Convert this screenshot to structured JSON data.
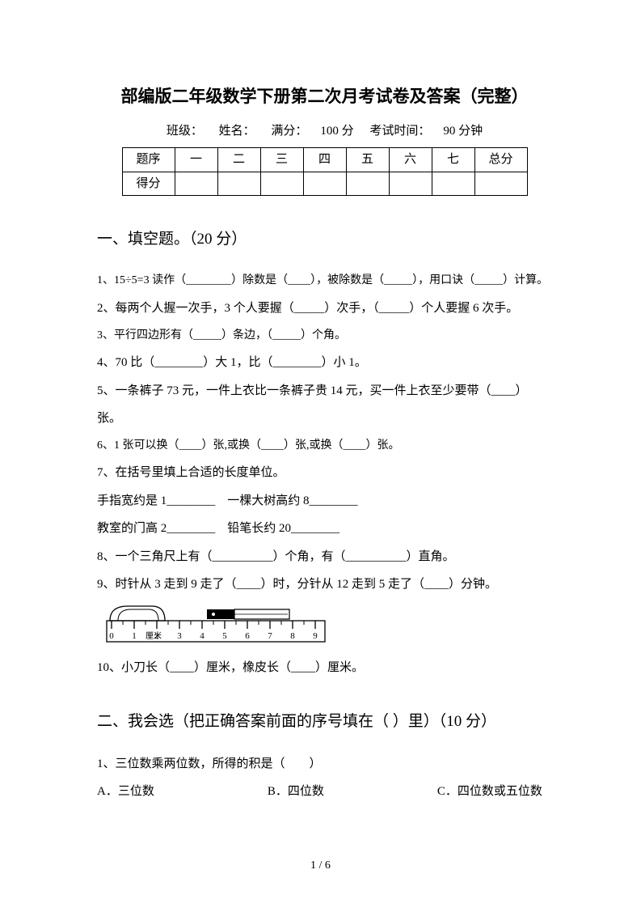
{
  "title": "部编版二年级数学下册第二次月考试卷及答案（完整）",
  "meta": {
    "class_label": "班级：",
    "name_label": "姓名：",
    "full_label": "满分：",
    "full_value": "100 分",
    "time_label": "考试时间：",
    "time_value": "90 分钟"
  },
  "score_table": {
    "row1": [
      "题序",
      "一",
      "二",
      "三",
      "四",
      "五",
      "六",
      "七",
      "总分"
    ],
    "row2_label": "得分"
  },
  "section1": {
    "heading": "一、填空题。（20 分）",
    "q1": "1、15÷5=3 读作（________）除数是（____），被除数是（_____），用口诀（_____）计算。",
    "q2": "2、每两个人握一次手，3 个人要握（_____）次手，（_____）个人要握 6 次手。",
    "q3": "3、平行四边形有（_____）条边，（_____）个角。",
    "q4": "4、70 比（________）大 1，比（________）小 1。",
    "q5a": "5、一条裤子 73 元，一件上衣比一条裤子贵 14 元，买一件上衣至少要带（____）",
    "q5b": "张。",
    "q6": "6、1 张可以换（____）张,或换（____）张,或换（____）张。",
    "q7": "7、在括号里填上合适的长度单位。",
    "q7a": "手指宽约是 1________　一棵大树高约 8________",
    "q7b": "教室的门高 2________　铅笔长约 20________",
    "q8": "8、一个三角尺上有（__________）个角，有（__________）直角。",
    "q9": "9、时针从 3 走到 9 走了（____）时，分针从 12 走到 5 走了（____）分钟。",
    "q10": "10、小刀长（____）厘米，橡皮长（____）厘米。"
  },
  "ruler": {
    "ticks": [
      0,
      1,
      2,
      3,
      4,
      5,
      6,
      7,
      8,
      9
    ],
    "unit_label": "厘米",
    "line_color": "#000000",
    "bg_color": "#ffffff"
  },
  "section2": {
    "heading": "二、我会选（把正确答案前面的序号填在（ ）里）（10 分）",
    "q1": "1、三位数乘两位数，所得的积是（　　）",
    "optA": "A．三位数",
    "optB": "B．四位数",
    "optC": "C．四位数或五位数"
  },
  "footer": "1 / 6"
}
